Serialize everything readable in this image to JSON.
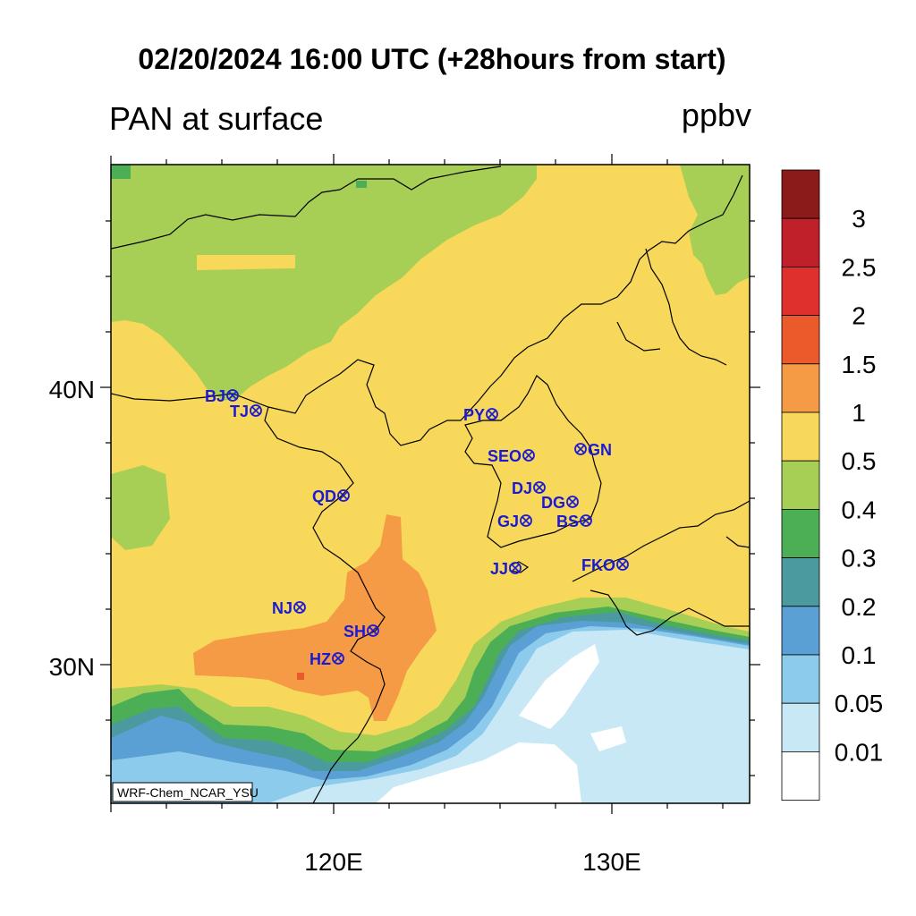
{
  "title": "02/20/2024 16:00 UTC (+28hours from start)",
  "variable": "PAN at surface",
  "units": "ppbv",
  "credit": "WRF-Chem_NCAR_YSU",
  "axes": {
    "lat_labels": [
      "40N",
      "30N"
    ],
    "lon_labels": [
      "120E",
      "130E"
    ]
  },
  "colorbar": {
    "levels": [
      "3",
      "2.5",
      "2",
      "1.5",
      "1",
      "0.5",
      "0.4",
      "0.3",
      "0.2",
      "0.1",
      "0.05",
      "0.01"
    ],
    "colors": [
      "#8b1a1a",
      "#c0202a",
      "#e0302e",
      "#ea5a2a",
      "#f59a45",
      "#f8d85a",
      "#a8cf55",
      "#4daf55",
      "#4a9aa0",
      "#5ba0d5",
      "#8ccbec",
      "#c8e8f6",
      "#ffffff"
    ]
  },
  "stations": [
    {
      "code": "BJ"
    },
    {
      "code": "TJ"
    },
    {
      "code": "PY"
    },
    {
      "code": "SEO"
    },
    {
      "code": "GN"
    },
    {
      "code": "QD"
    },
    {
      "code": "DJ"
    },
    {
      "code": "DG"
    },
    {
      "code": "GJ"
    },
    {
      "code": "BS"
    },
    {
      "code": "JJ"
    },
    {
      "code": "FKO"
    },
    {
      "code": "NJ"
    },
    {
      "code": "SH"
    },
    {
      "code": "HZ"
    }
  ],
  "station_color": "#1a1ad6"
}
